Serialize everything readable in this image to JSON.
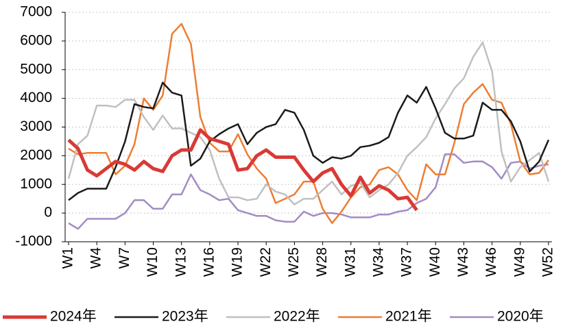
{
  "chart_data": {
    "type": "line",
    "categories": [
      "W1",
      null,
      null,
      "W4",
      null,
      null,
      "W7",
      null,
      null,
      "W10",
      null,
      null,
      "W13",
      null,
      null,
      "W16",
      null,
      null,
      "W19",
      null,
      null,
      "W22",
      null,
      null,
      "W25",
      null,
      null,
      "W28",
      null,
      null,
      "W31",
      null,
      null,
      "W34",
      null,
      null,
      "W37",
      null,
      null,
      "W40",
      null,
      null,
      "W43",
      null,
      null,
      "W46",
      null,
      null,
      "W49",
      null,
      null,
      "W52"
    ],
    "ylim": [
      -1000,
      7000
    ],
    "yticks": [
      -1000,
      0,
      1000,
      2000,
      3000,
      4000,
      5000,
      6000,
      7000
    ],
    "grid": true,
    "legend": "bottom",
    "series": [
      {
        "name": "2024年",
        "color": "#d93a35",
        "values": [
          2550,
          2250,
          1500,
          1300,
          1550,
          1800,
          1700,
          1500,
          1800,
          1550,
          1450,
          2000,
          2200,
          2200,
          2900,
          2600,
          2500,
          2400,
          1500,
          1550,
          2000,
          2200,
          1950,
          1950,
          1950,
          1500,
          1100,
          1400,
          1550,
          1000,
          600,
          1250,
          700,
          950,
          800,
          500,
          550,
          100,
          null,
          null,
          null,
          null,
          null,
          null,
          null,
          null,
          null,
          null,
          null,
          null,
          null,
          null
        ]
      },
      {
        "name": "2023年",
        "color": "#1a1a1a",
        "values": [
          450,
          700,
          850,
          850,
          850,
          1600,
          2500,
          3800,
          3700,
          3650,
          4550,
          4200,
          4100,
          1650,
          1900,
          2500,
          2750,
          2950,
          3100,
          2400,
          2800,
          3000,
          3100,
          3600,
          3500,
          2900,
          2000,
          1750,
          1950,
          1900,
          2000,
          2300,
          2350,
          2450,
          2650,
          3500,
          4100,
          3850,
          4400,
          3650,
          2800,
          2600,
          2600,
          2700,
          3850,
          3600,
          3600,
          3200,
          2500,
          1450,
          1800,
          2550
        ]
      },
      {
        "name": "2022年",
        "color": "#c0c0c0",
        "values": [
          1200,
          2400,
          2700,
          3750,
          3750,
          3700,
          3950,
          3950,
          3350,
          2900,
          3400,
          2950,
          2950,
          2800,
          2650,
          2200,
          1200,
          550,
          550,
          450,
          500,
          1000,
          750,
          650,
          300,
          500,
          500,
          800,
          1100,
          650,
          950,
          1050,
          550,
          800,
          1000,
          1400,
          2000,
          2300,
          2650,
          3300,
          3800,
          4350,
          4700,
          5450,
          5950,
          4950,
          2150,
          1100,
          1600,
          1850,
          2100,
          1100
        ]
      },
      {
        "name": "2021年",
        "color": "#ee7d31",
        "values": [
          2250,
          2050,
          2100,
          2100,
          2100,
          1350,
          1650,
          2400,
          4000,
          3600,
          4100,
          6250,
          6600,
          5900,
          3350,
          2450,
          2150,
          2150,
          2750,
          2050,
          1550,
          1200,
          350,
          500,
          650,
          1100,
          1100,
          150,
          -350,
          50,
          550,
          900,
          1000,
          1500,
          1600,
          1350,
          800,
          450,
          1700,
          1350,
          1350,
          2450,
          3800,
          4200,
          4500,
          3950,
          3850,
          3100,
          1800,
          1350,
          1400,
          1850
        ]
      },
      {
        "name": "2020年",
        "color": "#a28bc4",
        "values": [
          -350,
          -550,
          -200,
          -200,
          -200,
          -200,
          0,
          450,
          450,
          150,
          150,
          650,
          650,
          1350,
          800,
          650,
          450,
          500,
          100,
          0,
          -100,
          -100,
          -250,
          -300,
          -300,
          50,
          -100,
          0,
          0,
          -50,
          -150,
          -150,
          -150,
          -50,
          -50,
          50,
          100,
          350,
          500,
          900,
          2050,
          2050,
          1750,
          1800,
          1800,
          1600,
          1200,
          1750,
          1800,
          1550,
          1650,
          1700
        ]
      }
    ]
  }
}
